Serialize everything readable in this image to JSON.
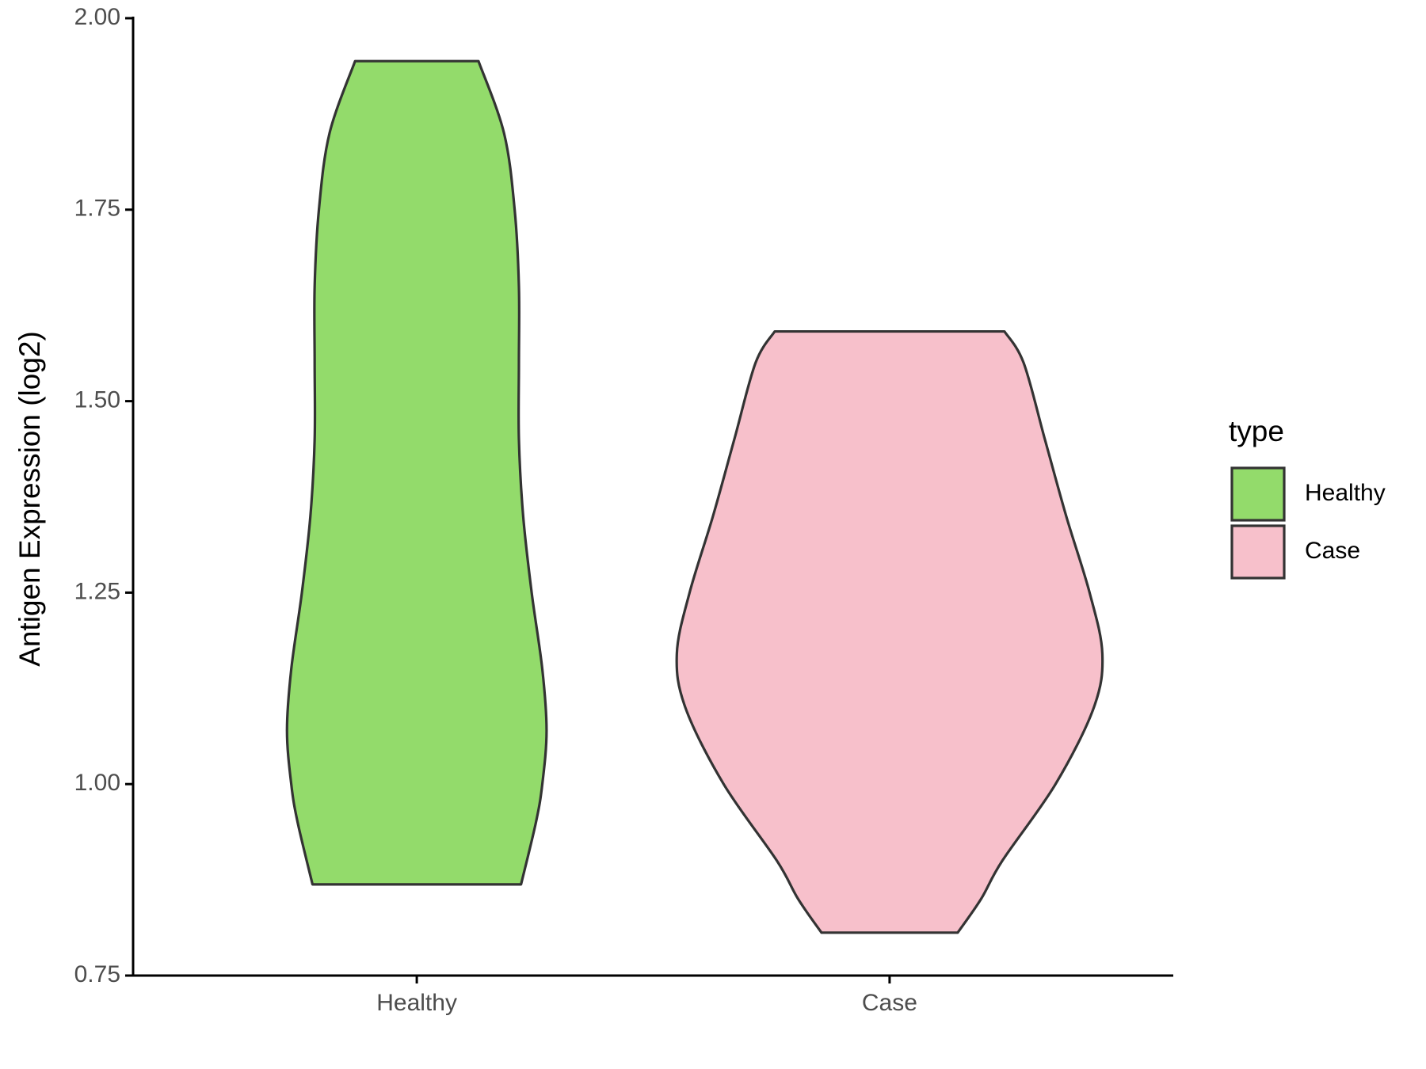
{
  "chart_data": {
    "type": "violin",
    "y_label": "Antigen Expression (log2)",
    "categories": [
      "Healthy",
      "Case"
    ],
    "legend_title": "type",
    "legend_position": "right",
    "ylim": [
      0.75,
      2.0
    ],
    "yticks": [
      0.75,
      {
        "value": 1.0,
        "label": "1.00"
      },
      1.25,
      {
        "value": 1.5,
        "label": "1.50"
      },
      1.75,
      {
        "value": 2.0,
        "label": "2.00"
      }
    ],
    "series": [
      {
        "name": "Healthy",
        "color": "#93db6b",
        "density_y": [
          1.944,
          1.85,
          1.75,
          1.65,
          1.55,
          1.45,
          1.35,
          1.25,
          1.15,
          1.07,
          1.0,
          0.95,
          0.869
        ],
        "density": [
          0.29,
          0.41,
          0.46,
          0.48,
          0.48,
          0.48,
          0.5,
          0.54,
          0.59,
          0.61,
          0.59,
          0.56,
          0.49
        ]
      },
      {
        "name": "Case",
        "color": "#f7c0cb",
        "density_y": [
          1.591,
          1.55,
          1.45,
          1.35,
          1.25,
          1.17,
          1.1,
          1.0,
          0.9,
          0.85,
          0.806
        ],
        "density": [
          0.54,
          0.63,
          0.73,
          0.83,
          0.94,
          1.0,
          0.96,
          0.78,
          0.53,
          0.43,
          0.32
        ]
      }
    ]
  }
}
